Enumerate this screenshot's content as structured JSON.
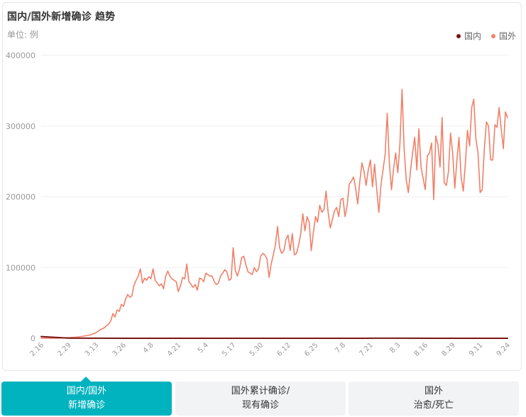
{
  "title": "国内/国外新增确诊 趋势",
  "unit": "单位: 例",
  "legend": [
    {
      "label": "国内",
      "color": "#7a1414"
    },
    {
      "label": "国外",
      "color": "#f08068"
    }
  ],
  "tabs": [
    {
      "line1": "国内/国外",
      "line2": "新增确诊",
      "active": true
    },
    {
      "line1": "国外累计确诊/",
      "line2": "现有确诊",
      "active": false
    },
    {
      "line1": "国外",
      "line2": "治愈/死亡",
      "active": false
    }
  ],
  "chart_data": {
    "type": "line",
    "ylim": [
      0,
      400000
    ],
    "yticks": [
      "0",
      "100000",
      "200000",
      "300000",
      "400000"
    ],
    "xticks": [
      "2.16",
      "2.29",
      "3.13",
      "3.26",
      "4.8",
      "4.21",
      "5.4",
      "5.17",
      "5.30",
      "6.12",
      "6.25",
      "7.8",
      "7.21",
      "8.3",
      "8.16",
      "8.29",
      "9.11",
      "9.24"
    ],
    "x_count": 222,
    "grid": true,
    "legend_position": "top-right",
    "series": [
      {
        "name": "国内",
        "color": "#7a1414",
        "points": [
          [
            0,
            2400
          ],
          [
            13,
            300
          ],
          [
            26,
            100
          ],
          [
            40,
            30
          ],
          [
            60,
            20
          ],
          [
            90,
            10
          ],
          [
            120,
            15
          ],
          [
            150,
            50
          ],
          [
            160,
            100
          ],
          [
            170,
            120
          ],
          [
            185,
            50
          ],
          [
            200,
            20
          ],
          [
            221,
            15
          ]
        ]
      },
      {
        "name": "国外",
        "color": "#f08068",
        "points": [
          [
            0,
            0
          ],
          [
            5,
            0
          ],
          [
            8,
            200
          ],
          [
            10,
            600
          ],
          [
            13,
            1000
          ],
          [
            16,
            1500
          ],
          [
            19,
            2500
          ],
          [
            21,
            3500
          ],
          [
            23,
            4500
          ],
          [
            25,
            6500
          ],
          [
            26,
            8000
          ],
          [
            28,
            12000
          ],
          [
            30,
            15000
          ],
          [
            31,
            18000
          ],
          [
            32,
            20000
          ],
          [
            33,
            25000
          ],
          [
            34,
            35000
          ],
          [
            35,
            30000
          ],
          [
            36,
            40000
          ],
          [
            37,
            38000
          ],
          [
            38,
            48000
          ],
          [
            39,
            45000
          ],
          [
            40,
            55000
          ],
          [
            41,
            62000
          ],
          [
            42,
            58000
          ],
          [
            43,
            60000
          ],
          [
            44,
            75000
          ],
          [
            45,
            82000
          ],
          [
            46,
            88000
          ],
          [
            47,
            98000
          ],
          [
            48,
            78000
          ],
          [
            49,
            85000
          ],
          [
            50,
            82000
          ],
          [
            51,
            87000
          ],
          [
            52,
            84000
          ],
          [
            53,
            98000
          ],
          [
            54,
            82000
          ],
          [
            55,
            78000
          ],
          [
            56,
            74000
          ],
          [
            57,
            77000
          ],
          [
            58,
            70000
          ],
          [
            59,
            88000
          ],
          [
            60,
            95000
          ],
          [
            61,
            88000
          ],
          [
            62,
            84000
          ],
          [
            63,
            82000
          ],
          [
            64,
            80000
          ],
          [
            65,
            66000
          ],
          [
            66,
            74000
          ],
          [
            67,
            86000
          ],
          [
            68,
            84000
          ],
          [
            69,
            105000
          ],
          [
            70,
            80000
          ],
          [
            71,
            76000
          ],
          [
            72,
            72000
          ],
          [
            73,
            76000
          ],
          [
            74,
            68000
          ],
          [
            75,
            85000
          ],
          [
            76,
            84000
          ],
          [
            77,
            80000
          ],
          [
            78,
            92000
          ],
          [
            79,
            90000
          ],
          [
            80,
            88000
          ],
          [
            81,
            88000
          ],
          [
            82,
            80000
          ],
          [
            83,
            76000
          ],
          [
            84,
            78000
          ],
          [
            85,
            88000
          ],
          [
            86,
            92000
          ],
          [
            87,
            97000
          ],
          [
            88,
            94000
          ],
          [
            89,
            82000
          ],
          [
            90,
            84000
          ],
          [
            91,
            128000
          ],
          [
            92,
            96000
          ],
          [
            93,
            88000
          ],
          [
            94,
            98000
          ],
          [
            95,
            114000
          ],
          [
            96,
            116000
          ],
          [
            97,
            104000
          ],
          [
            98,
            94000
          ],
          [
            99,
            92000
          ],
          [
            100,
            90000
          ],
          [
            101,
            100000
          ],
          [
            102,
            94000
          ],
          [
            103,
            98000
          ],
          [
            104,
            116000
          ],
          [
            105,
            120000
          ],
          [
            106,
            118000
          ],
          [
            107,
            112000
          ],
          [
            108,
            86000
          ],
          [
            109,
            105000
          ],
          [
            110,
            118000
          ],
          [
            111,
            132000
          ],
          [
            112,
            158000
          ],
          [
            113,
            128000
          ],
          [
            114,
            120000
          ],
          [
            115,
            124000
          ],
          [
            116,
            140000
          ],
          [
            117,
            146000
          ],
          [
            118,
            124000
          ],
          [
            119,
            148000
          ],
          [
            120,
            118000
          ],
          [
            121,
            120000
          ],
          [
            122,
            132000
          ],
          [
            123,
            148000
          ],
          [
            124,
            176000
          ],
          [
            125,
            152000
          ],
          [
            126,
            172000
          ],
          [
            127,
            164000
          ],
          [
            128,
            124000
          ],
          [
            129,
            150000
          ],
          [
            130,
            172000
          ],
          [
            131,
            164000
          ],
          [
            132,
            188000
          ],
          [
            133,
            178000
          ],
          [
            134,
            182000
          ],
          [
            135,
            208000
          ],
          [
            136,
            178000
          ],
          [
            137,
            156000
          ],
          [
            138,
            168000
          ],
          [
            139,
            180000
          ],
          [
            140,
            185000
          ],
          [
            141,
            172000
          ],
          [
            142,
            196000
          ],
          [
            143,
            198000
          ],
          [
            144,
            172000
          ],
          [
            145,
            188000
          ],
          [
            146,
            218000
          ],
          [
            147,
            222000
          ],
          [
            148,
            228000
          ],
          [
            149,
            212000
          ],
          [
            150,
            190000
          ],
          [
            151,
            222000
          ],
          [
            152,
            248000
          ],
          [
            153,
            236000
          ],
          [
            154,
            216000
          ],
          [
            155,
            238000
          ],
          [
            156,
            252000
          ],
          [
            157,
            214000
          ],
          [
            158,
            246000
          ],
          [
            159,
            210000
          ],
          [
            160,
            178000
          ],
          [
            161,
            216000
          ],
          [
            162,
            238000
          ],
          [
            163,
            260000
          ],
          [
            164,
            318000
          ],
          [
            165,
            248000
          ],
          [
            166,
            210000
          ],
          [
            167,
            240000
          ],
          [
            168,
            262000
          ],
          [
            169,
            234000
          ],
          [
            170,
            275000
          ],
          [
            171,
            352000
          ],
          [
            172,
            268000
          ],
          [
            173,
            224000
          ],
          [
            174,
            206000
          ],
          [
            175,
            236000
          ],
          [
            176,
            262000
          ],
          [
            177,
            284000
          ],
          [
            178,
            238000
          ],
          [
            179,
            296000
          ],
          [
            180,
            242000
          ],
          [
            181,
            226000
          ],
          [
            182,
            210000
          ],
          [
            183,
            258000
          ],
          [
            184,
            262000
          ],
          [
            185,
            276000
          ],
          [
            186,
            196000
          ],
          [
            187,
            286000
          ],
          [
            188,
            274000
          ],
          [
            189,
            242000
          ],
          [
            190,
            312000
          ],
          [
            191,
            220000
          ],
          [
            192,
            216000
          ],
          [
            193,
            236000
          ],
          [
            194,
            290000
          ],
          [
            195,
            262000
          ],
          [
            196,
            212000
          ],
          [
            197,
            252000
          ],
          [
            198,
            284000
          ],
          [
            199,
            228000
          ],
          [
            200,
            208000
          ],
          [
            201,
            246000
          ],
          [
            202,
            294000
          ],
          [
            203,
            272000
          ],
          [
            204,
            326000
          ],
          [
            205,
            338000
          ],
          [
            206,
            282000
          ],
          [
            207,
            262000
          ],
          [
            208,
            206000
          ],
          [
            209,
            210000
          ],
          [
            210,
            268000
          ],
          [
            211,
            306000
          ],
          [
            212,
            300000
          ],
          [
            213,
            252000
          ],
          [
            214,
            252000
          ],
          [
            215,
            302000
          ],
          [
            216,
            298000
          ],
          [
            217,
            326000
          ],
          [
            218,
            296000
          ],
          [
            219,
            268000
          ],
          [
            220,
            320000
          ],
          [
            221,
            312000
          ]
        ]
      }
    ]
  }
}
